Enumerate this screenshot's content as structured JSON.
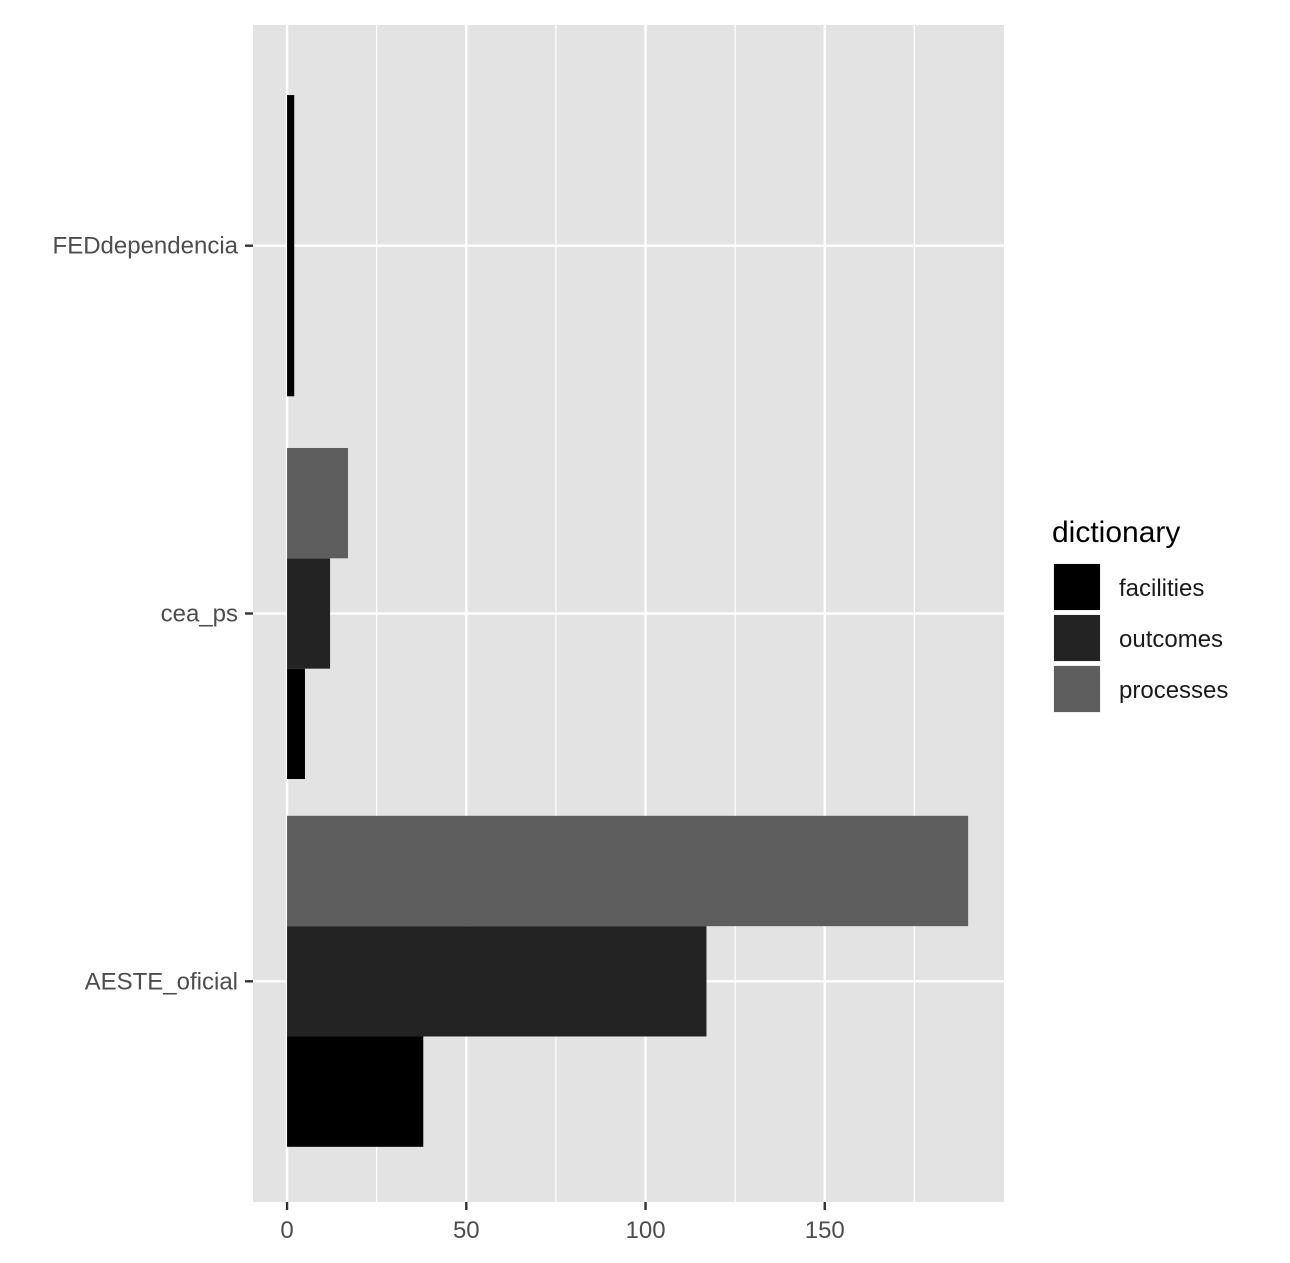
{
  "chart_data": {
    "type": "bar",
    "orientation": "horizontal",
    "categories": [
      "AESTE_oficial",
      "cea_ps",
      "FEDdependencia"
    ],
    "series": [
      {
        "name": "facilities",
        "color": "#000000",
        "values": [
          38,
          5,
          2
        ]
      },
      {
        "name": "outcomes",
        "color": "#232323",
        "values": [
          117,
          12,
          null
        ]
      },
      {
        "name": "processes",
        "color": "#5e5e5e",
        "values": [
          190,
          17,
          null
        ]
      }
    ],
    "x_ticks": [
      0,
      50,
      100,
      150
    ],
    "x_tick_labels": [
      "0",
      "50",
      "100",
      "150"
    ],
    "xlim": [
      -9.5,
      200
    ],
    "title": "",
    "xlabel": "",
    "ylabel": "",
    "grid": true,
    "panel_background": "#e3e3e3",
    "grid_color": "#ffffff",
    "legend": {
      "title": "dictionary",
      "position": "right",
      "items": [
        "facilities",
        "outcomes",
        "processes"
      ]
    }
  }
}
